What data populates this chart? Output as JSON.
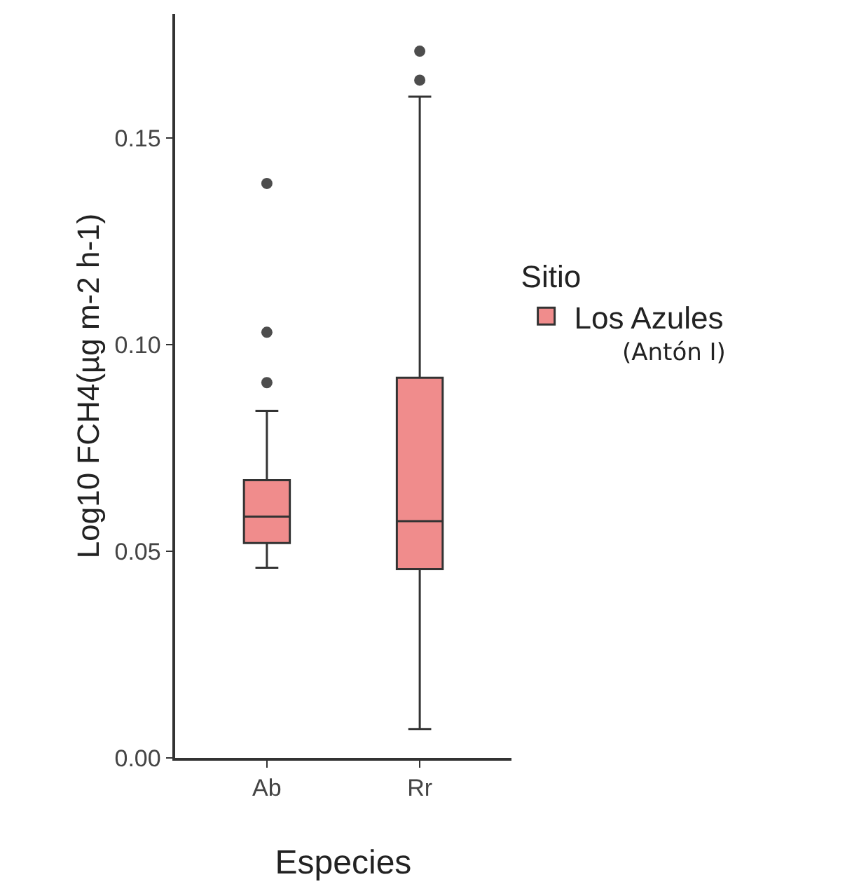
{
  "chart_data": {
    "type": "box",
    "xlabel": "Especies",
    "ylabel": "Log10 FCH4(µg m-2 h-1)",
    "legend_title": "Sitio",
    "categories": [
      "Ab",
      "Rr"
    ],
    "series": [
      {
        "name": "Los Azules",
        "color": "#f08c8c",
        "boxes": [
          {
            "low": 0.046,
            "q1": 0.052,
            "median": 0.0584,
            "q3": 0.0672,
            "high": 0.084,
            "outliers": [
              0.0908,
              0.103,
              0.139
            ]
          },
          {
            "low": 0.007,
            "q1": 0.0457,
            "median": 0.0573,
            "q3": 0.092,
            "high": 0.16,
            "outliers": [
              0.164,
              0.171
            ]
          }
        ]
      }
    ],
    "ylim": [
      0,
      0.18
    ],
    "yticks": [
      {
        "value": 0,
        "label": "0.00"
      },
      {
        "value": 0.05,
        "label": "0.05"
      },
      {
        "value": 0.1,
        "label": "0.10"
      },
      {
        "value": 0.15,
        "label": "0.15"
      }
    ],
    "grid": false,
    "legend": "right",
    "annotations": [
      "(Antón I)"
    ]
  }
}
